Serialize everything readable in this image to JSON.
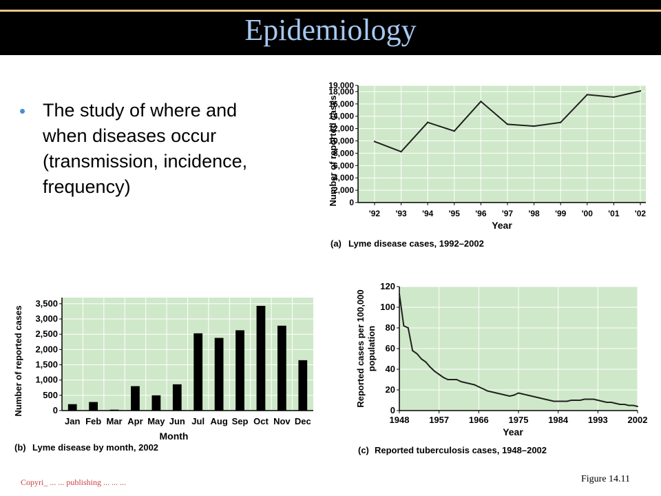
{
  "slide": {
    "title": "Epidemiology",
    "bullet": "The study of where and when diseases occur (transmission, incidence, frequency)",
    "footer": "Copyri_ ... ... publishing ... ... ...",
    "figure_label": "Figure 14.11"
  },
  "colors": {
    "plot_bg": "#cfe8c9",
    "grid": "#ffffff",
    "line": "#202020",
    "bar": "#000000",
    "title_text": "#a6c8f0",
    "bullet_dot": "#4a8fd6"
  },
  "chart_data": [
    {
      "type": "line",
      "caption_letter": "(a)",
      "caption_text": "Lyme disease cases, 1992–2002",
      "xlabel": "Year",
      "ylabel": "Number of reported cases",
      "x": [
        "'92",
        "'93",
        "'94",
        "'95",
        "'96",
        "'97",
        "'98",
        "'99",
        "'00",
        "'01",
        "'02"
      ],
      "values": [
        9900,
        8250,
        13000,
        11600,
        16400,
        12700,
        12400,
        13000,
        17500,
        17100,
        18100
      ],
      "yticks": [
        "0",
        "2,000",
        "4,000",
        "6,000",
        "8,000",
        "10,000",
        "12,000",
        "14,000",
        "16,000",
        "18,000",
        "19,000"
      ],
      "ytick_values": [
        0,
        2000,
        4000,
        6000,
        8000,
        10000,
        12000,
        14000,
        16000,
        18000,
        19000
      ],
      "ylim": [
        0,
        19000
      ],
      "grid": true
    },
    {
      "type": "bar",
      "caption_letter": "(b)",
      "caption_text": "Lyme disease by month, 2002",
      "xlabel": "Month",
      "ylabel": "Number of reported cases",
      "categories": [
        "Jan",
        "Feb",
        "Mar",
        "Apr",
        "May",
        "Jun",
        "Jul",
        "Aug",
        "Sep",
        "Oct",
        "Nov",
        "Dec"
      ],
      "values": [
        210,
        280,
        30,
        800,
        500,
        860,
        2530,
        2380,
        2630,
        3430,
        2780,
        1650
      ],
      "yticks": [
        "0",
        "500",
        "1,000",
        "1,500",
        "2,000",
        "2,500",
        "3,000",
        "3,500"
      ],
      "ytick_values": [
        0,
        500,
        1000,
        1500,
        2000,
        2500,
        3000,
        3500
      ],
      "ylim": [
        0,
        3700
      ],
      "grid": true
    },
    {
      "type": "line",
      "caption_letter": "(c)",
      "caption_text": "Reported tuberculosis cases, 1948–2002",
      "xlabel": "Year",
      "ylabel_lines": [
        "Reported cases per 100,000",
        "population"
      ],
      "xticks": [
        "1948",
        "1957",
        "1966",
        "1975",
        "1984",
        "1993",
        "2002"
      ],
      "xtick_values": [
        1948,
        1957,
        1966,
        1975,
        1984,
        1993,
        2002
      ],
      "x": [
        1948,
        1949,
        1950,
        1951,
        1952,
        1953,
        1954,
        1955,
        1956,
        1957,
        1958,
        1959,
        1960,
        1961,
        1962,
        1963,
        1964,
        1965,
        1966,
        1967,
        1968,
        1969,
        1970,
        1971,
        1972,
        1973,
        1974,
        1975,
        1976,
        1977,
        1978,
        1979,
        1980,
        1981,
        1982,
        1983,
        1984,
        1985,
        1986,
        1987,
        1988,
        1989,
        1990,
        1991,
        1992,
        1993,
        1994,
        1995,
        1996,
        1997,
        1998,
        1999,
        2000,
        2001,
        2002
      ],
      "values": [
        113,
        82,
        80,
        58,
        55,
        50,
        47,
        42,
        38,
        35,
        32,
        30,
        30,
        30,
        28,
        27,
        26,
        25,
        23,
        21,
        19,
        18,
        17,
        16,
        15,
        14,
        15,
        17,
        16,
        15,
        14,
        13,
        12,
        11,
        10,
        9,
        9,
        9,
        9,
        10,
        10,
        10,
        11,
        11,
        11,
        10,
        9,
        8,
        8,
        7,
        6,
        6,
        5,
        5,
        4
      ],
      "yticks": [
        "0",
        "20",
        "40",
        "60",
        "80",
        "100",
        "120"
      ],
      "ytick_values": [
        0,
        20,
        40,
        60,
        80,
        100,
        120
      ],
      "ylim": [
        0,
        120
      ],
      "xlim": [
        1948,
        2002
      ],
      "grid": true
    }
  ]
}
